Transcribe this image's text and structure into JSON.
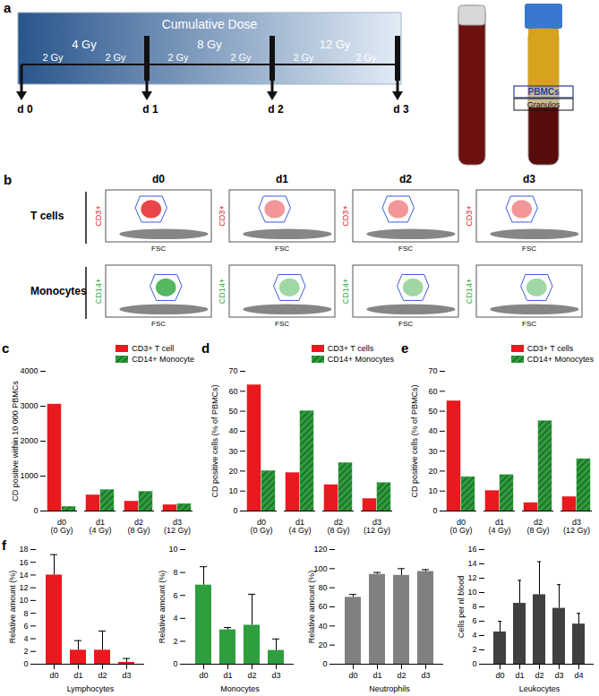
{
  "panel_labels": [
    "a",
    "b",
    "c",
    "d",
    "e",
    "f"
  ],
  "timeline": {
    "title": "Cumulative Dose",
    "cumulative": [
      "4 Gy",
      "8 Gy",
      "12 Gy"
    ],
    "fractions": [
      "2 Gy",
      "2 Gy",
      "2 Gy",
      "2 Gy",
      "2 Gy",
      "2 Gy"
    ],
    "days": [
      "d 0",
      "d 1",
      "d 2",
      "d 3"
    ]
  },
  "tube_labels": [
    "PBMCs",
    "Granulos"
  ],
  "flow": {
    "columns": [
      "d0",
      "d1",
      "d2",
      "d3"
    ],
    "rows": [
      {
        "name": "T cells",
        "axis_label": "CD3+",
        "color": "#e4161d"
      },
      {
        "name": "Monocytes",
        "axis_label": "CD14+",
        "color": "#2aa638"
      }
    ],
    "x_label": "FSC"
  },
  "chart_data": [
    {
      "type": "bar",
      "ylabel": "CD positive within 10 000 PBMCs",
      "categories": [
        "d0 (0 Gy)",
        "d1 (4 Gy)",
        "d2 (8 Gy)",
        "d3 (12 Gy)"
      ],
      "series": [
        {
          "name": "CD3+ T cell",
          "color": "#e8191f",
          "values": [
            3050,
            450,
            270,
            170
          ]
        },
        {
          "name": "CD14+ Monocyte",
          "color": "#2f9e3e",
          "values": [
            120,
            600,
            550,
            200
          ]
        }
      ],
      "ylim": [
        0,
        4000
      ],
      "yticks": [
        0,
        1000,
        2000,
        3000,
        4000
      ],
      "legend": "top-right"
    },
    {
      "type": "bar",
      "ylabel": "CD positive cells (% of PBMCs)",
      "categories": [
        "d0 (0 Gy)",
        "d1 (4 Gy)",
        "d2 (8 Gy)",
        "d3 (12 Gy)"
      ],
      "series": [
        {
          "name": "CD3+ T cells",
          "color": "#e8191f",
          "values": [
            63,
            19,
            13,
            6
          ]
        },
        {
          "name": "CD14+ Monocytes",
          "color": "#2f9e3e",
          "values": [
            20,
            50,
            24,
            14
          ]
        }
      ],
      "ylim": [
        0,
        70
      ],
      "yticks": [
        0,
        10,
        20,
        30,
        40,
        50,
        60,
        70
      ],
      "legend": "top-right"
    },
    {
      "type": "bar",
      "ylabel": "CD positive cells (% of PBMCs)",
      "categories": [
        "d0 (0 Gy)",
        "d1 (4 Gy)",
        "d2 (8 Gy)",
        "d3 (12 Gy)"
      ],
      "series": [
        {
          "name": "CD3+ T cells",
          "color": "#e8191f",
          "values": [
            55,
            10,
            4,
            7
          ]
        },
        {
          "name": "CD14+ Monocytes",
          "color": "#2f9e3e",
          "values": [
            17,
            18,
            45,
            26
          ]
        }
      ],
      "ylim": [
        0,
        70
      ],
      "yticks": [
        0,
        10,
        20,
        30,
        40,
        50,
        60,
        70
      ],
      "legend": "top-right"
    },
    {
      "type": "bar",
      "xlabel": "Lymphocytes",
      "ylabel": "Relative amount (%)",
      "categories": [
        "d0",
        "d1",
        "d2",
        "d3"
      ],
      "values": [
        14,
        2.2,
        2.2,
        0.3
      ],
      "errors": [
        3.2,
        1.5,
        3,
        0.6
      ],
      "color": "#e8191f",
      "ylim": [
        0,
        18
      ],
      "yticks": [
        0,
        2,
        4,
        6,
        8,
        10,
        12,
        14,
        16,
        18
      ]
    },
    {
      "type": "bar",
      "xlabel": "Monocytes",
      "ylabel": "Relative amount (%)",
      "categories": [
        "d0",
        "d1",
        "d2",
        "d3"
      ],
      "values": [
        6.9,
        3,
        3.4,
        1.2
      ],
      "errors": [
        1.6,
        0.2,
        2.7,
        1
      ],
      "color": "#2f9e3e",
      "ylim": [
        0,
        10
      ],
      "yticks": [
        0,
        2,
        4,
        6,
        8,
        10
      ]
    },
    {
      "type": "bar",
      "xlabel": "Neutrophils",
      "ylabel": "Relative amount (%)",
      "categories": [
        "d0",
        "d1",
        "d2",
        "d3"
      ],
      "values": [
        70,
        94,
        93,
        97
      ],
      "errors": [
        3,
        2,
        7,
        2
      ],
      "color": "#808080",
      "ylim": [
        0,
        120
      ],
      "yticks": [
        0,
        20,
        40,
        60,
        80,
        100,
        120
      ]
    },
    {
      "type": "bar",
      "xlabel": "Leukocytes",
      "ylabel": "Cells per nl blood",
      "categories": [
        "d0",
        "d1",
        "d2",
        "d3",
        "d4"
      ],
      "values": [
        4.5,
        8.5,
        9.7,
        7.8,
        5.6
      ],
      "errors": [
        1.5,
        3.2,
        4.6,
        3.3,
        1.5
      ],
      "color": "#404040",
      "ylim": [
        0,
        16
      ],
      "yticks": [
        0,
        2,
        4,
        6,
        8,
        10,
        12,
        14,
        16
      ]
    }
  ]
}
